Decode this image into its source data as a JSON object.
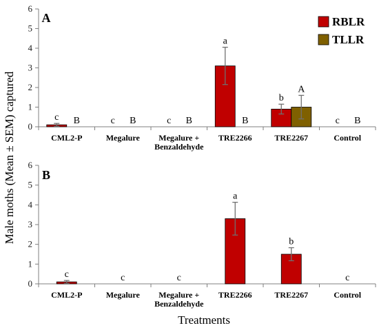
{
  "chart_data": [
    {
      "type": "bar",
      "panel": "A",
      "categories": [
        "CML2-P",
        "Megalure",
        "Megalure + Benzaldehyde",
        "TRE2266",
        "TRE2267",
        "Control"
      ],
      "category_lines": [
        [
          "CML2-P"
        ],
        [
          "Megalure"
        ],
        [
          "Megalure +",
          "Benzaldehyde"
        ],
        [
          "TRE2266"
        ],
        [
          "TRE2267"
        ],
        [
          "Control"
        ]
      ],
      "ylim": [
        0,
        6
      ],
      "yticks": [
        "0",
        "1",
        "2",
        "3",
        "4",
        "5",
        "6"
      ],
      "legend_position": "top-right",
      "series": [
        {
          "name": "RBLR",
          "color": "#c00000",
          "values": [
            0.1,
            0,
            0,
            3.1,
            0.9,
            0
          ],
          "errors": [
            0.07,
            0,
            0,
            0.95,
            0.25,
            0
          ],
          "letters": [
            "c",
            "c",
            "c",
            "a",
            "b",
            "c"
          ]
        },
        {
          "name": "TLLR",
          "color": "#7f6000",
          "values": [
            0,
            0,
            0,
            0,
            1.0,
            0
          ],
          "errors": [
            0,
            0,
            0,
            0,
            0.6,
            0
          ],
          "letters": [
            "B",
            "B",
            "B",
            "B",
            "A",
            "B"
          ]
        }
      ]
    },
    {
      "type": "bar",
      "panel": "B",
      "categories": [
        "CML2-P",
        "Megalure",
        "Megalure + Benzaldehyde",
        "TRE2266",
        "TRE2267",
        "Control"
      ],
      "category_lines": [
        [
          "CML2-P"
        ],
        [
          "Megalure"
        ],
        [
          "Megalure +",
          "Benzaldehyde"
        ],
        [
          "TRE2266"
        ],
        [
          "TRE2267"
        ],
        [
          "Control"
        ]
      ],
      "ylim": [
        0,
        6
      ],
      "yticks": [
        "0",
        "1",
        "2",
        "3",
        "4",
        "5",
        "6"
      ],
      "series": [
        {
          "color": "#c00000",
          "values": [
            0.1,
            0,
            0,
            3.3,
            1.5,
            0
          ],
          "errors": [
            0.07,
            0,
            0,
            0.83,
            0.33,
            0
          ],
          "letters": [
            "c",
            "c",
            "c",
            "a",
            "b",
            "c"
          ]
        }
      ]
    }
  ],
  "ylabel": "Male moths (Mean ± SEM) captured",
  "xlabel": "Treatments"
}
